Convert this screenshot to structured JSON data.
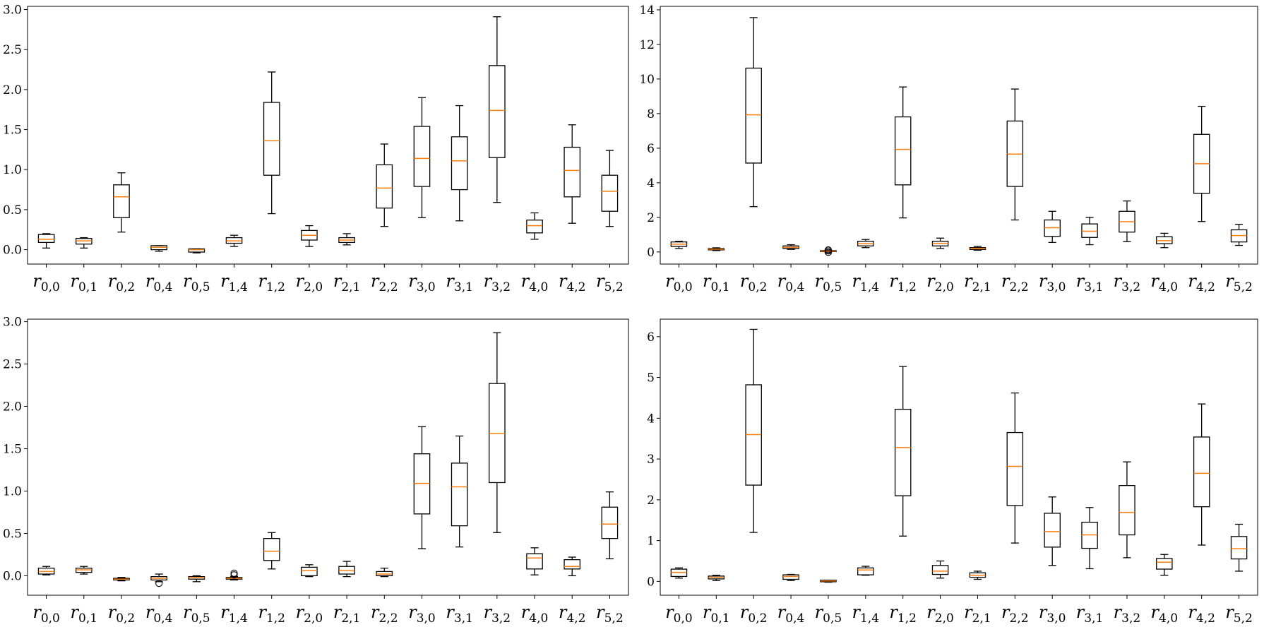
{
  "chart_data": [
    {
      "type": "box",
      "categories": [
        "r_{0,0}",
        "r_{0,1}",
        "r_{0,2}",
        "r_{0,4}",
        "r_{0,5}",
        "r_{1,4}",
        "r_{1,2}",
        "r_{2,0}",
        "r_{2,1}",
        "r_{2,2}",
        "r_{3,0}",
        "r_{3,1}",
        "r_{3,2}",
        "r_{4,0}",
        "r_{4,2}",
        "r_{5,2}"
      ],
      "ylim": [
        -0.18,
        3.04
      ],
      "yticks": [
        0.0,
        0.5,
        1.0,
        1.5,
        2.0,
        2.5,
        3.0
      ],
      "ytick_labels": [
        "0.0",
        "0.5",
        "1.0",
        "1.5",
        "2.0",
        "2.5",
        "3.0"
      ],
      "boxes": [
        {
          "whislo": 0.02,
          "q1": 0.09,
          "med": 0.13,
          "q3": 0.19,
          "whishi": 0.2,
          "fliers": []
        },
        {
          "whislo": 0.02,
          "q1": 0.07,
          "med": 0.11,
          "q3": 0.14,
          "whishi": 0.15,
          "fliers": []
        },
        {
          "whislo": 0.22,
          "q1": 0.4,
          "med": 0.66,
          "q3": 0.81,
          "whishi": 0.96,
          "fliers": []
        },
        {
          "whislo": -0.02,
          "q1": 0.0,
          "med": 0.03,
          "q3": 0.05,
          "whishi": 0.05,
          "fliers": []
        },
        {
          "whislo": -0.04,
          "q1": -0.03,
          "med": 0.0,
          "q3": 0.01,
          "whishi": 0.01,
          "fliers": []
        },
        {
          "whislo": 0.04,
          "q1": 0.08,
          "med": 0.11,
          "q3": 0.15,
          "whishi": 0.18,
          "fliers": []
        },
        {
          "whislo": 0.45,
          "q1": 0.93,
          "med": 1.36,
          "q3": 1.84,
          "whishi": 2.22,
          "fliers": []
        },
        {
          "whislo": 0.04,
          "q1": 0.12,
          "med": 0.18,
          "q3": 0.24,
          "whishi": 0.3,
          "fliers": []
        },
        {
          "whislo": 0.06,
          "q1": 0.09,
          "med": 0.12,
          "q3": 0.15,
          "whishi": 0.2,
          "fliers": []
        },
        {
          "whislo": 0.29,
          "q1": 0.52,
          "med": 0.77,
          "q3": 1.06,
          "whishi": 1.32,
          "fliers": []
        },
        {
          "whislo": 0.4,
          "q1": 0.79,
          "med": 1.14,
          "q3": 1.54,
          "whishi": 1.9,
          "fliers": []
        },
        {
          "whislo": 0.36,
          "q1": 0.75,
          "med": 1.11,
          "q3": 1.41,
          "whishi": 1.8,
          "fliers": []
        },
        {
          "whislo": 0.59,
          "q1": 1.15,
          "med": 1.74,
          "q3": 2.3,
          "whishi": 2.91,
          "fliers": []
        },
        {
          "whislo": 0.13,
          "q1": 0.21,
          "med": 0.3,
          "q3": 0.37,
          "whishi": 0.46,
          "fliers": []
        },
        {
          "whislo": 0.33,
          "q1": 0.66,
          "med": 0.99,
          "q3": 1.28,
          "whishi": 1.56,
          "fliers": []
        },
        {
          "whislo": 0.29,
          "q1": 0.48,
          "med": 0.73,
          "q3": 0.93,
          "whishi": 1.24,
          "fliers": []
        }
      ]
    },
    {
      "type": "box",
      "categories": [
        "r_{0,0}",
        "r_{0,1}",
        "r_{0,2}",
        "r_{0,4}",
        "r_{0,5}",
        "r_{1,4}",
        "r_{1,2}",
        "r_{2,0}",
        "r_{2,1}",
        "r_{2,2}",
        "r_{3,0}",
        "r_{3,1}",
        "r_{3,2}",
        "r_{4,0}",
        "r_{4,2}",
        "r_{5,2}"
      ],
      "ylim": [
        -0.7,
        14.2
      ],
      "yticks": [
        0,
        2,
        4,
        6,
        8,
        10,
        12,
        14
      ],
      "ytick_labels": [
        "0",
        "2",
        "4",
        "6",
        "8",
        "10",
        "12",
        "14"
      ],
      "boxes": [
        {
          "whislo": 0.2,
          "q1": 0.32,
          "med": 0.45,
          "q3": 0.58,
          "whishi": 0.62,
          "fliers": []
        },
        {
          "whislo": 0.08,
          "q1": 0.12,
          "med": 0.16,
          "q3": 0.2,
          "whishi": 0.24,
          "fliers": []
        },
        {
          "whislo": 2.62,
          "q1": 5.14,
          "med": 7.93,
          "q3": 10.63,
          "whishi": 13.55,
          "fliers": []
        },
        {
          "whislo": 0.15,
          "q1": 0.2,
          "med": 0.27,
          "q3": 0.35,
          "whishi": 0.42,
          "fliers": []
        },
        {
          "whislo": 0.0,
          "q1": 0.02,
          "med": 0.05,
          "q3": 0.08,
          "whishi": 0.1,
          "fliers": [
            0.12,
            0.06,
            -0.02
          ]
        },
        {
          "whislo": 0.25,
          "q1": 0.35,
          "med": 0.48,
          "q3": 0.62,
          "whishi": 0.72,
          "fliers": []
        },
        {
          "whislo": 1.97,
          "q1": 3.88,
          "med": 5.93,
          "q3": 7.81,
          "whishi": 9.54,
          "fliers": []
        },
        {
          "whislo": 0.2,
          "q1": 0.35,
          "med": 0.5,
          "q3": 0.62,
          "whishi": 0.8,
          "fliers": []
        },
        {
          "whislo": 0.1,
          "q1": 0.14,
          "med": 0.2,
          "q3": 0.25,
          "whishi": 0.32,
          "fliers": []
        },
        {
          "whislo": 1.85,
          "q1": 3.79,
          "med": 5.66,
          "q3": 7.57,
          "whishi": 9.42,
          "fliers": []
        },
        {
          "whislo": 0.55,
          "q1": 0.9,
          "med": 1.4,
          "q3": 1.85,
          "whishi": 2.35,
          "fliers": []
        },
        {
          "whislo": 0.42,
          "q1": 0.84,
          "med": 1.2,
          "q3": 1.62,
          "whishi": 2.0,
          "fliers": []
        },
        {
          "whislo": 0.6,
          "q1": 1.15,
          "med": 1.75,
          "q3": 2.35,
          "whishi": 2.95,
          "fliers": []
        },
        {
          "whislo": 0.25,
          "q1": 0.48,
          "med": 0.65,
          "q3": 0.88,
          "whishi": 1.08,
          "fliers": []
        },
        {
          "whislo": 1.76,
          "q1": 3.39,
          "med": 5.1,
          "q3": 6.8,
          "whishi": 8.42,
          "fliers": []
        },
        {
          "whislo": 0.38,
          "q1": 0.58,
          "med": 0.95,
          "q3": 1.28,
          "whishi": 1.6,
          "fliers": []
        }
      ]
    },
    {
      "type": "box",
      "categories": [
        "r_{0,0}",
        "r_{0,1}",
        "r_{0,2}",
        "r_{0,4}",
        "r_{0,5}",
        "r_{1,4}",
        "r_{1,2}",
        "r_{2,0}",
        "r_{2,1}",
        "r_{2,2}",
        "r_{3,0}",
        "r_{3,1}",
        "r_{3,2}",
        "r_{4,0}",
        "r_{4,2}",
        "r_{5,2}"
      ],
      "ylim": [
        -0.23,
        3.03
      ],
      "yticks": [
        0.0,
        0.5,
        1.0,
        1.5,
        2.0,
        2.5,
        3.0
      ],
      "ytick_labels": [
        "0.0",
        "0.5",
        "1.0",
        "1.5",
        "2.0",
        "2.5",
        "3.0"
      ],
      "boxes": [
        {
          "whislo": 0.01,
          "q1": 0.02,
          "med": 0.05,
          "q3": 0.09,
          "whishi": 0.11,
          "fliers": []
        },
        {
          "whislo": 0.02,
          "q1": 0.04,
          "med": 0.07,
          "q3": 0.09,
          "whishi": 0.11,
          "fliers": []
        },
        {
          "whislo": -0.06,
          "q1": -0.05,
          "med": -0.04,
          "q3": -0.03,
          "whishi": -0.02,
          "fliers": []
        },
        {
          "whislo": -0.07,
          "q1": -0.05,
          "med": -0.03,
          "q3": -0.01,
          "whishi": 0.02,
          "fliers": [
            -0.09
          ]
        },
        {
          "whislo": -0.07,
          "q1": -0.04,
          "med": -0.02,
          "q3": -0.01,
          "whishi": 0.0,
          "fliers": []
        },
        {
          "whislo": -0.05,
          "q1": -0.04,
          "med": -0.03,
          "q3": -0.02,
          "whishi": -0.01,
          "fliers": [
            0.01,
            0.03
          ]
        },
        {
          "whislo": 0.08,
          "q1": 0.18,
          "med": 0.29,
          "q3": 0.44,
          "whishi": 0.51,
          "fliers": []
        },
        {
          "whislo": -0.01,
          "q1": 0.0,
          "med": 0.06,
          "q3": 0.1,
          "whishi": 0.13,
          "fliers": []
        },
        {
          "whislo": -0.01,
          "q1": 0.02,
          "med": 0.06,
          "q3": 0.11,
          "whishi": 0.17,
          "fliers": []
        },
        {
          "whislo": -0.01,
          "q1": 0.0,
          "med": 0.02,
          "q3": 0.05,
          "whishi": 0.09,
          "fliers": []
        },
        {
          "whislo": 0.32,
          "q1": 0.73,
          "med": 1.09,
          "q3": 1.44,
          "whishi": 1.76,
          "fliers": []
        },
        {
          "whislo": 0.34,
          "q1": 0.59,
          "med": 1.05,
          "q3": 1.33,
          "whishi": 1.65,
          "fliers": []
        },
        {
          "whislo": 0.51,
          "q1": 1.1,
          "med": 1.68,
          "q3": 2.27,
          "whishi": 2.87,
          "fliers": []
        },
        {
          "whislo": 0.01,
          "q1": 0.08,
          "med": 0.21,
          "q3": 0.26,
          "whishi": 0.33,
          "fliers": []
        },
        {
          "whislo": 0.0,
          "q1": 0.08,
          "med": 0.11,
          "q3": 0.19,
          "whishi": 0.22,
          "fliers": []
        },
        {
          "whislo": 0.2,
          "q1": 0.44,
          "med": 0.61,
          "q3": 0.81,
          "whishi": 0.99,
          "fliers": []
        }
      ]
    },
    {
      "type": "box",
      "categories": [
        "r_{0,0}",
        "r_{0,1}",
        "r_{0,2}",
        "r_{0,4}",
        "r_{0,5}",
        "r_{1,4}",
        "r_{1,2}",
        "r_{2,0}",
        "r_{2,1}",
        "r_{2,2}",
        "r_{3,0}",
        "r_{3,1}",
        "r_{3,2}",
        "r_{4,0}",
        "r_{4,2}",
        "r_{5,2}"
      ],
      "ylim": [
        -0.34,
        6.43
      ],
      "yticks": [
        0,
        1,
        2,
        3,
        4,
        5,
        6
      ],
      "ytick_labels": [
        "0",
        "1",
        "2",
        "3",
        "4",
        "5",
        "6"
      ],
      "boxes": [
        {
          "whislo": 0.08,
          "q1": 0.12,
          "med": 0.22,
          "q3": 0.3,
          "whishi": 0.33,
          "fliers": []
        },
        {
          "whislo": 0.02,
          "q1": 0.06,
          "med": 0.1,
          "q3": 0.13,
          "whishi": 0.15,
          "fliers": []
        },
        {
          "whislo": 1.2,
          "q1": 2.36,
          "med": 3.6,
          "q3": 4.82,
          "whishi": 6.18,
          "fliers": []
        },
        {
          "whislo": 0.02,
          "q1": 0.05,
          "med": 0.12,
          "q3": 0.16,
          "whishi": 0.17,
          "fliers": []
        },
        {
          "whislo": -0.02,
          "q1": -0.01,
          "med": 0.01,
          "q3": 0.03,
          "whishi": 0.03,
          "fliers": []
        },
        {
          "whislo": 0.15,
          "q1": 0.16,
          "med": 0.28,
          "q3": 0.33,
          "whishi": 0.37,
          "fliers": []
        },
        {
          "whislo": 1.11,
          "q1": 2.1,
          "med": 3.28,
          "q3": 4.22,
          "whishi": 5.27,
          "fliers": []
        },
        {
          "whislo": 0.08,
          "q1": 0.17,
          "med": 0.25,
          "q3": 0.39,
          "whishi": 0.5,
          "fliers": []
        },
        {
          "whislo": 0.05,
          "q1": 0.1,
          "med": 0.15,
          "q3": 0.21,
          "whishi": 0.25,
          "fliers": []
        },
        {
          "whislo": 0.94,
          "q1": 1.86,
          "med": 2.82,
          "q3": 3.65,
          "whishi": 4.62,
          "fliers": []
        },
        {
          "whislo": 0.39,
          "q1": 0.84,
          "med": 1.22,
          "q3": 1.67,
          "whishi": 2.07,
          "fliers": []
        },
        {
          "whislo": 0.31,
          "q1": 0.81,
          "med": 1.14,
          "q3": 1.45,
          "whishi": 1.81,
          "fliers": []
        },
        {
          "whislo": 0.58,
          "q1": 1.14,
          "med": 1.69,
          "q3": 2.35,
          "whishi": 2.93,
          "fliers": []
        },
        {
          "whislo": 0.15,
          "q1": 0.3,
          "med": 0.47,
          "q3": 0.56,
          "whishi": 0.66,
          "fliers": []
        },
        {
          "whislo": 0.89,
          "q1": 1.83,
          "med": 2.65,
          "q3": 3.54,
          "whishi": 4.35,
          "fliers": []
        },
        {
          "whislo": 0.25,
          "q1": 0.55,
          "med": 0.8,
          "q3": 1.1,
          "whishi": 1.4,
          "fliers": []
        }
      ]
    }
  ]
}
